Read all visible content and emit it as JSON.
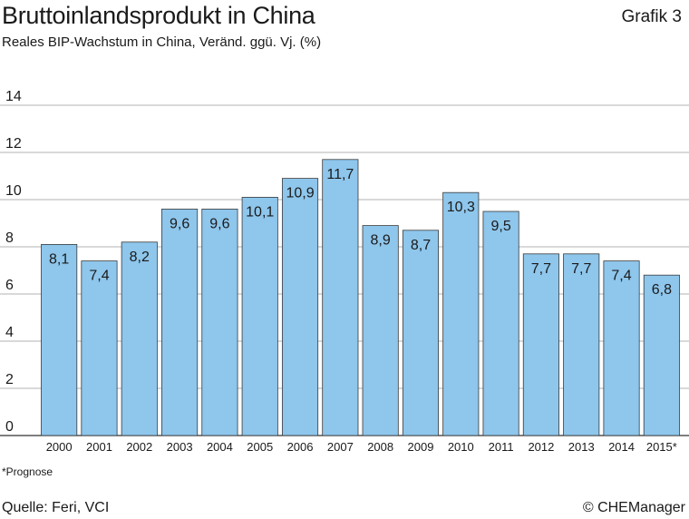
{
  "header": {
    "title": "Bruttoinlandsprodukt in China",
    "figure_label": "Grafik 3",
    "subtitle": "Reales BIP-Wachstum in China, Veränd. ggü. Vj. (%)"
  },
  "footer": {
    "footnote": "*Prognose",
    "source": "Quelle: Feri, VCI",
    "credit": "© CHEManager"
  },
  "colors": {
    "bar": "#8ec6ec",
    "bar_edge": "#3a3a3a",
    "grid": "#9a9a9a"
  },
  "chart_data": {
    "type": "bar",
    "title": "Bruttoinlandsprodukt in China",
    "subtitle": "Reales BIP-Wachstum in China, Veränd. ggü. Vj. (%)",
    "categories": [
      "2000",
      "2001",
      "2002",
      "2003",
      "2004",
      "2005",
      "2006",
      "2007",
      "2008",
      "2009",
      "2010",
      "2011",
      "2012",
      "2013",
      "2014",
      "2015*"
    ],
    "values": [
      8.1,
      7.4,
      8.2,
      9.6,
      9.6,
      10.1,
      10.9,
      11.7,
      8.9,
      8.7,
      10.3,
      9.5,
      7.7,
      7.7,
      7.4,
      6.8
    ],
    "value_labels": [
      "8,1",
      "7,4",
      "8,2",
      "9,6",
      "9,6",
      "10,1",
      "10,9",
      "11,7",
      "8,9",
      "8,7",
      "10,3",
      "9,5",
      "7,7",
      "7,7",
      "7,4",
      "6,8"
    ],
    "yticks": [
      0,
      2,
      4,
      6,
      8,
      10,
      12,
      14
    ],
    "ytick_labels": [
      "0",
      "2",
      "4",
      "6",
      "8",
      "10",
      "12",
      "14"
    ],
    "ylim": [
      0,
      14
    ],
    "grid": true,
    "legend": "none"
  }
}
